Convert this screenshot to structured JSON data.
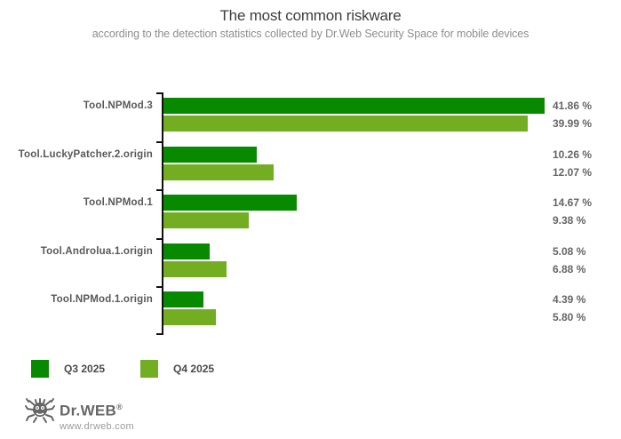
{
  "header": {
    "title": "The most common riskware",
    "subtitle": "according to the detection statistics collected by Dr.Web Security Space for mobile devices"
  },
  "chart_data": {
    "type": "bar",
    "orientation": "horizontal",
    "title": "The most common riskware",
    "subtitle": "according to the detection statistics collected by Dr.Web Security Space for mobile devices",
    "categories": [
      "Tool.NPMod.3",
      "Tool.LuckyPatcher.2.origin",
      "Tool.NPMod.1",
      "Tool.Androlua.1.origin",
      "Tool.NPMod.1.origin"
    ],
    "series": [
      {
        "name": "Q3 2025",
        "color": "#078a00",
        "values": [
          41.86,
          10.26,
          14.67,
          5.08,
          4.39
        ],
        "labels": [
          "41.86 %",
          "10.26 %",
          "14.67 %",
          "5.08 %",
          "4.39 %"
        ]
      },
      {
        "name": "Q4 2025",
        "color": "#73ad21",
        "values": [
          39.99,
          12.07,
          9.38,
          6.88,
          5.8
        ],
        "labels": [
          "39.99 %",
          "12.07 %",
          "9.38 %",
          "6.88 %",
          "5.80 %"
        ]
      }
    ],
    "unit": "%",
    "xlim": [
      0,
      42
    ],
    "grid": false,
    "legend_position": "bottom-left"
  },
  "legend": {
    "items": [
      {
        "label": "Q3 2025",
        "color": "#078a00"
      },
      {
        "label": "Q4 2025",
        "color": "#73ad21"
      }
    ]
  },
  "footer": {
    "brand": "Dr.WEB",
    "registered": "®",
    "url": "www.drweb.com"
  }
}
